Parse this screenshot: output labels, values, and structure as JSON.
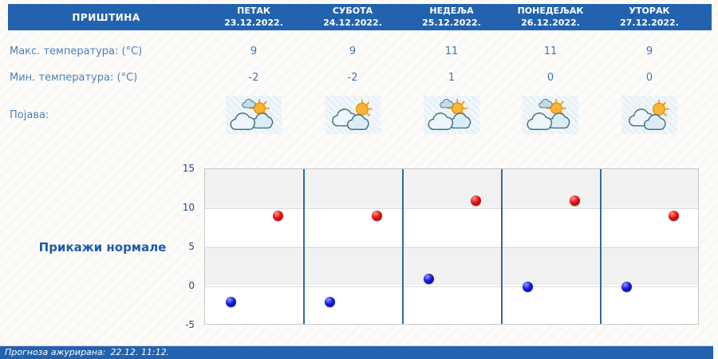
{
  "location": "ПРИШТИНА",
  "table": {
    "days": [
      {
        "name": "ПЕТАК",
        "date": "23.12.2022."
      },
      {
        "name": "СУБОТА",
        "date": "24.12.2022."
      },
      {
        "name": "НЕДЕЉА",
        "date": "25.12.2022."
      },
      {
        "name": "ПОНЕДЕЉАК",
        "date": "26.12.2022."
      },
      {
        "name": "УТОРАК",
        "date": "27.12.2022."
      }
    ],
    "rows": {
      "max_label": "Макс. температура: (°C)",
      "min_label": "Мин. температура: (°C)",
      "appearance_label": "Појава:"
    },
    "max_values": [
      "9",
      "9",
      "11",
      "11",
      "9"
    ],
    "min_values": [
      "-2",
      "-2",
      "1",
      "0",
      "0"
    ],
    "icons": [
      "sun-and-clouds",
      "sun-behind-clouds",
      "sun-and-clouds",
      "sun-and-clouds",
      "sun-behind-clouds"
    ]
  },
  "normals_link_label": "Прикажи нормале",
  "footer": {
    "updated_label": "Прогноза ажурирана:",
    "updated_value": "22.12. 11:12."
  },
  "colors": {
    "header_blue": "#2262ae",
    "label_blue": "#4d7fb5",
    "link_blue": "#1e5ca8",
    "separator_blue": "#2f6c9e",
    "max_dot": "#e21313",
    "min_dot": "#1818d8",
    "band_gray": "#f1f1f1"
  },
  "chart_data": {
    "type": "scatter",
    "categories": [
      "23.12.2022.",
      "24.12.2022.",
      "25.12.2022.",
      "26.12.2022.",
      "27.12.2022."
    ],
    "series": [
      {
        "name": "Макс. температура (°C)",
        "color": "#e21313",
        "values": [
          9,
          9,
          11,
          11,
          9
        ]
      },
      {
        "name": "Мин. температура (°C)",
        "color": "#1818d8",
        "values": [
          -2,
          -2,
          1,
          0,
          0
        ]
      }
    ],
    "title": "",
    "xlabel": "",
    "ylabel": "",
    "ylim": [
      -5,
      15
    ],
    "yticks": [
      15,
      10,
      5,
      0,
      -5
    ],
    "grid": true,
    "legend": false,
    "column_separators": true,
    "banded_background": true
  }
}
